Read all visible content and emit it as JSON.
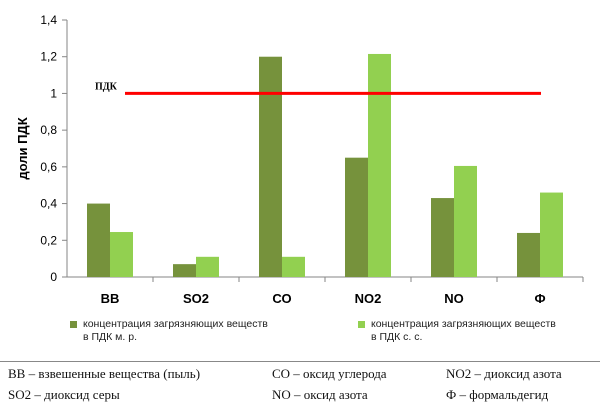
{
  "chart_data": {
    "type": "bar",
    "categories": [
      "ВВ",
      "SO2",
      "СО",
      "NO2",
      "NO",
      "Ф"
    ],
    "series": [
      {
        "name": "концентрация загрязняющих веществ в ПДК м. р.",
        "values": [
          0.4,
          0.07,
          1.2,
          0.65,
          0.43,
          0.24
        ],
        "color": "#76923c"
      },
      {
        "name": "концентрация загрязняющих веществ в ПДК с. с.",
        "values": [
          0.245,
          0.11,
          0.11,
          1.215,
          0.605,
          0.46
        ],
        "color": "#92d050"
      }
    ],
    "ylabel": "доли ПДК",
    "ylim": [
      0,
      1.4
    ],
    "yticks": [
      "0",
      "0,2",
      "0,4",
      "0,6",
      "0,8",
      "1",
      "1,2",
      "1,4"
    ],
    "grid": false,
    "legend_position": "bottom",
    "threshold": {
      "label": "ПДК",
      "value": 1,
      "color": "#ff0000"
    }
  },
  "legend": {
    "item1_line1": "концентрация загрязняющих веществ",
    "item1_line2": "в ПДК м. р.",
    "item2_line1": "концентрация загрязняющих веществ",
    "item2_line2": "в ПДК с. с."
  },
  "notes": {
    "row1": [
      "ВВ – взвешенные вещества (пыль)",
      "СО – оксид углерода",
      "NO2 – диоксид азота"
    ],
    "row2": [
      "SO2 – диоксид серы",
      "NO – оксид азота",
      "Ф – формальдегид"
    ]
  }
}
